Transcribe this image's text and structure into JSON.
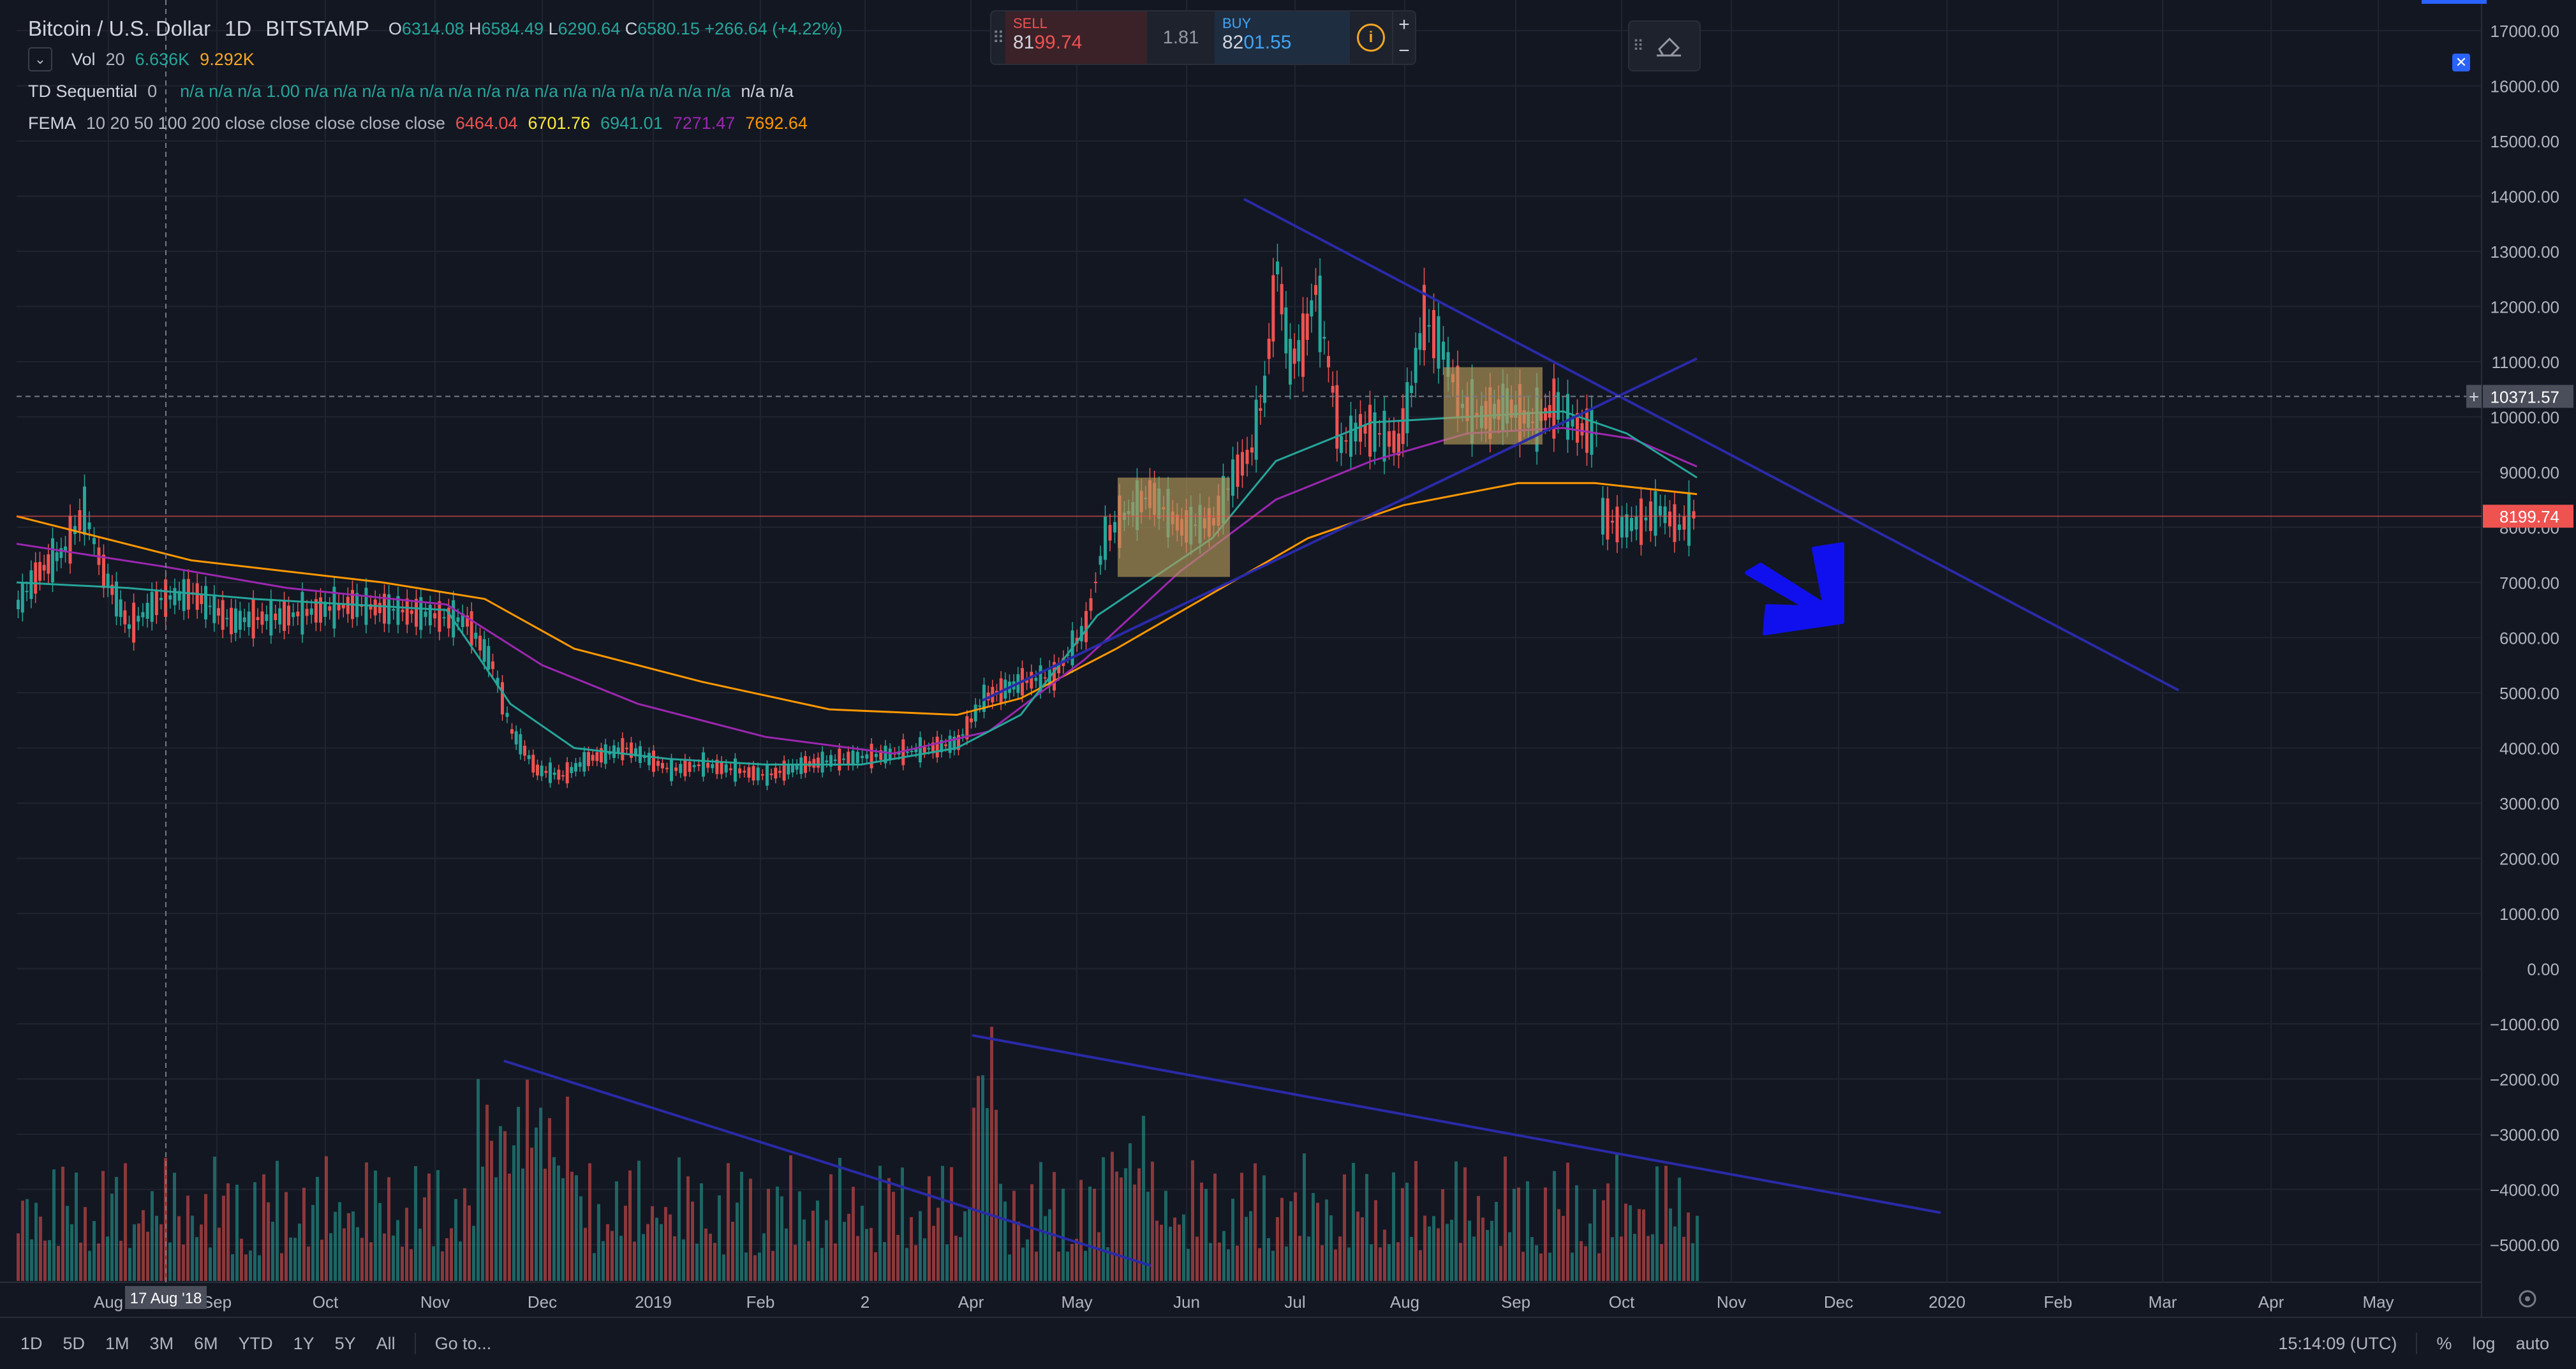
{
  "header": {
    "symbol": "Bitcoin / U.S. Dollar",
    "interval": "1D",
    "exchange": "BITSTAMP",
    "open_label": "O",
    "open": "6314.08",
    "high_label": "H",
    "high": "6584.49",
    "low_label": "L",
    "low": "6290.64",
    "close_label": "C",
    "close": "6580.15",
    "change": "+266.64 (+4.22%)"
  },
  "indicators": {
    "volume": {
      "name": "Vol",
      "param": "20",
      "v1": "6.636K",
      "v2": "9.292K",
      "v1_color": "#26a69a",
      "v2_color": "#f5a623"
    },
    "td": {
      "name": "TD Sequential",
      "param": "0",
      "values": "n/a n/a n/a 1.00 n/a n/a n/a n/a n/a n/a n/a n/a n/a n/a n/a n/a n/a n/a n/a",
      "tail": "n/a n/a"
    },
    "fema": {
      "name": "FEMA",
      "params": "10 20 50 100 200 close close close close close",
      "values": [
        "6464.04",
        "6701.76",
        "6941.01",
        "7271.47",
        "7692.64"
      ],
      "colors": [
        "#ef5350",
        "#ffeb3b",
        "#26a69a",
        "#9c27b0",
        "#ff9800"
      ]
    }
  },
  "trade": {
    "sell_label": "SELL",
    "sell_main": "81",
    "sell_big": "99",
    "sell_tail": ".74",
    "spread": "1.81",
    "buy_label": "BUY",
    "buy_main": "82",
    "buy_big": "01",
    "buy_tail": ".55",
    "info_icon": "i",
    "plus": "+",
    "minus": "−"
  },
  "price_axis": {
    "labels": [
      "17000.00",
      "16000.00",
      "15000.00",
      "14000.00",
      "13000.00",
      "12000.00",
      "11000.00",
      "10000.00",
      "9000.00",
      "8000.00",
      "7000.00",
      "6000.00",
      "5000.00",
      "4000.00",
      "3000.00",
      "2000.00",
      "1000.00",
      "0.00",
      "−1000.00",
      "−2000.00",
      "−3000.00",
      "−4000.00",
      "−5000.00"
    ],
    "crosshair_value": "10371.57",
    "current_price": "8199.74",
    "current_color": "#ef5350"
  },
  "time_axis": {
    "labels": [
      "Aug",
      "Sep",
      "Oct",
      "Nov",
      "Dec",
      "2019",
      "Feb",
      "2",
      "Apr",
      "May",
      "Jun",
      "Jul",
      "Aug",
      "Sep",
      "Oct",
      "Nov",
      "Dec",
      "2020",
      "Feb",
      "Mar",
      "Apr",
      "May"
    ],
    "crosshair_date": "17 Aug '18"
  },
  "bottom_bar": {
    "timeframes": [
      "1D",
      "5D",
      "1M",
      "3M",
      "6M",
      "YTD",
      "1Y",
      "5Y",
      "All"
    ],
    "goto": "Go to...",
    "clock": "15:14:09 (UTC)",
    "percent": "%",
    "log": "log",
    "auto": "auto"
  },
  "colors": {
    "background": "#131722",
    "grid": "#1f2430",
    "up": "#26a69a",
    "down": "#ef5350",
    "trendline": "#2a2aa8",
    "arrow": "#1010ee",
    "box": "#b59a5a"
  }
}
